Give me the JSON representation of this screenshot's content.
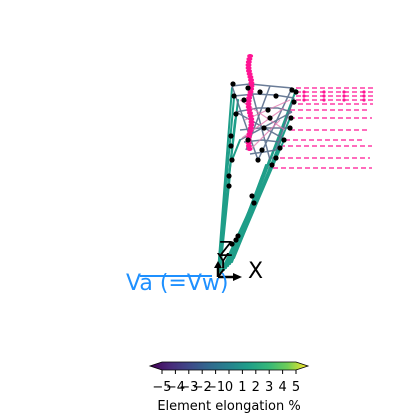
{
  "axes": {
    "x_label": "X",
    "y_label": "Y",
    "z_label": "Z"
  },
  "velocity_label": "Va (=Vw)",
  "colorbar": {
    "label": "Element elongation %",
    "ticks": [
      "−5",
      "−4",
      "−3",
      "−2",
      "−1",
      "0",
      "1",
      "2",
      "3",
      "4",
      "5"
    ],
    "range": [
      -5,
      5
    ],
    "colormap": "viridis"
  },
  "colors": {
    "tethers": "#1f9e89",
    "nodes": "#000000",
    "kite_markers": "#ff1493",
    "velocity_arrow": "#1e90ff",
    "axes": "#000000"
  }
}
